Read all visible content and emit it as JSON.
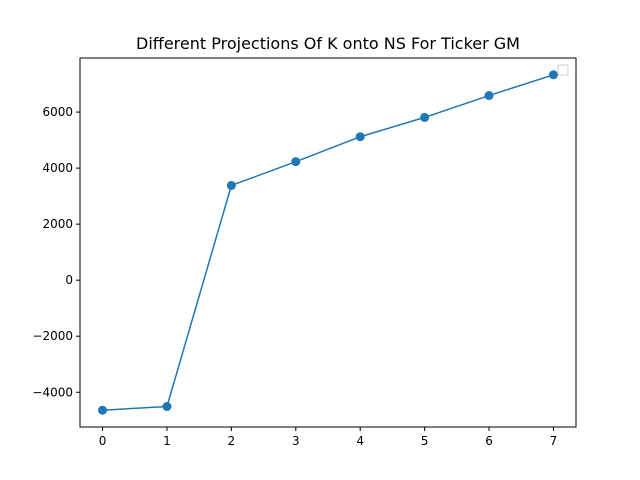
{
  "chart_data": {
    "type": "line",
    "title": "Different Projections Of K onto NS For Ticker GM",
    "xlabel": "",
    "ylabel": "",
    "x": [
      0,
      1,
      2,
      3,
      4,
      5,
      6,
      7
    ],
    "series": [
      {
        "values": [
          -4640,
          -4510,
          3380,
          4230,
          5120,
          5810,
          6590,
          7330
        ],
        "color": "#1f77b4",
        "marker": "circle"
      }
    ],
    "xticks": [
      "0",
      "1",
      "2",
      "3",
      "4",
      "5",
      "6",
      "7"
    ],
    "yticks": [
      -4000,
      -2000,
      0,
      2000,
      4000,
      6000
    ],
    "ytick_labels": [
      "−4000",
      "−2000",
      "0",
      "2000",
      "4000",
      "6000"
    ],
    "xlim": [
      -0.35,
      7.35
    ],
    "ylim": [
      -5240,
      7930
    ],
    "grid": false,
    "legend": "top-right (empty)"
  }
}
